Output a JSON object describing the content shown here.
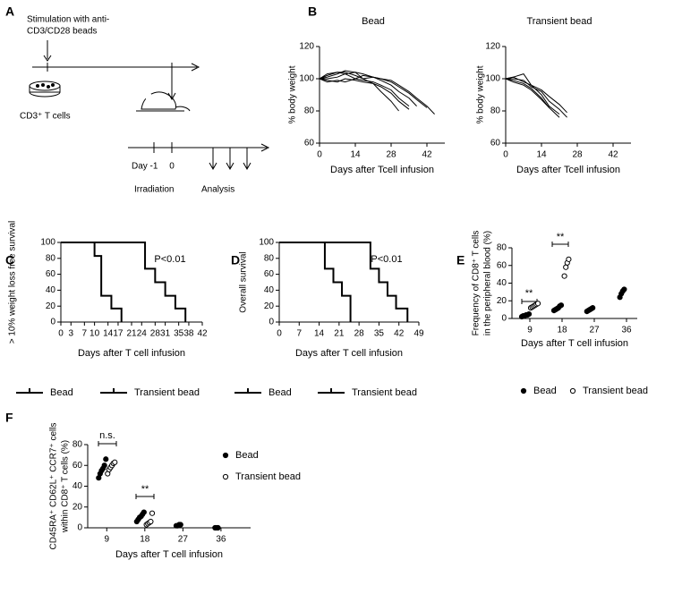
{
  "panels": [
    "A",
    "B",
    "C",
    "D",
    "E",
    "F"
  ],
  "diagram": {
    "stimulation": [
      "Stimulation with anti-",
      "CD3/CD28 beads"
    ],
    "cells": "CD3⁺ T cells",
    "day": "Day",
    "day_ticks": [
      "-1",
      "0"
    ],
    "irradiation": "Irradiation",
    "analysis": "Analysis"
  },
  "chart_data": [
    {
      "type": "line",
      "title": "Bead",
      "xlabel": "Days after Tcell infusion",
      "ylabel": "% body weight",
      "x": [
        0,
        3,
        7,
        10,
        14,
        17,
        21,
        24,
        28,
        31,
        35,
        38,
        42,
        45
      ],
      "xlim": [
        0,
        49
      ],
      "xticks": [
        0,
        14,
        28,
        42
      ],
      "ylim": [
        60,
        120
      ],
      "yticks": [
        60,
        80,
        100,
        120
      ],
      "color": "#000000",
      "series": [
        {
          "values": [
            100,
            101,
            103,
            105,
            104,
            100,
            97,
            92,
            86,
            80,
            null,
            null,
            null,
            null
          ]
        },
        {
          "values": [
            100,
            99,
            98,
            100,
            99,
            98,
            97,
            95,
            91,
            86,
            81,
            null,
            null,
            null
          ]
        },
        {
          "values": [
            100,
            102,
            104,
            103,
            100,
            99,
            98,
            96,
            93,
            88,
            83,
            null,
            null,
            null
          ]
        },
        {
          "values": [
            100,
            98,
            99,
            98,
            100,
            102,
            101,
            99,
            96,
            92,
            88,
            83,
            null,
            null
          ]
        },
        {
          "values": [
            100,
            103,
            104,
            104,
            102,
            100,
            101,
            100,
            98,
            95,
            91,
            87,
            82,
            null
          ]
        },
        {
          "values": [
            100,
            100,
            101,
            103,
            104,
            103,
            101,
            100,
            99,
            96,
            92,
            88,
            83,
            78
          ]
        }
      ]
    },
    {
      "type": "line",
      "title": "Transient bead",
      "xlabel": "Days after Tcell infusion",
      "ylabel": "% body weight",
      "x": [
        0,
        3,
        7,
        10,
        14,
        17,
        21,
        24
      ],
      "xlim": [
        0,
        49
      ],
      "xticks": [
        0,
        14,
        28,
        42
      ],
      "ylim": [
        60,
        120
      ],
      "yticks": [
        60,
        80,
        100,
        120
      ],
      "color": "#000000",
      "series": [
        {
          "values": [
            100,
            101,
            103,
            96,
            90,
            83,
            78,
            null
          ]
        },
        {
          "values": [
            100,
            99,
            97,
            94,
            88,
            82,
            76,
            null
          ]
        },
        {
          "values": [
            100,
            100,
            99,
            95,
            92,
            86,
            81,
            76
          ]
        },
        {
          "values": [
            100,
            98,
            96,
            93,
            87,
            82,
            null,
            null
          ]
        },
        {
          "values": [
            100,
            101,
            98,
            96,
            93,
            89,
            84,
            79
          ]
        }
      ]
    },
    {
      "type": "step",
      "xlabel": "Days after T cell infusion",
      "ylabel": "> 10% weight loss free survival",
      "xlim": [
        0,
        42
      ],
      "xticks": [
        0,
        3,
        7,
        10,
        14,
        17,
        21,
        24,
        28,
        31,
        35,
        38,
        42
      ],
      "ylim": [
        0,
        100
      ],
      "yticks": [
        0,
        20,
        40,
        60,
        80,
        100
      ],
      "legend": "bottom",
      "annotations": [
        "P<0.01"
      ],
      "series": [
        {
          "name": "Bead",
          "color": "#e8262a",
          "x": [
            0,
            25,
            28,
            31,
            34,
            37
          ],
          "values": [
            100,
            67,
            50,
            33,
            17,
            0
          ]
        },
        {
          "name": "Transient bead",
          "color": "#000000",
          "x": [
            0,
            10,
            12,
            15,
            18
          ],
          "values": [
            100,
            83,
            33,
            17,
            0
          ]
        }
      ]
    },
    {
      "type": "step",
      "xlabel": "Days after T cell infusion",
      "ylabel": "Overall survival",
      "xlim": [
        0,
        49
      ],
      "xticks": [
        0,
        7,
        14,
        21,
        28,
        35,
        42,
        49
      ],
      "ylim": [
        0,
        100
      ],
      "yticks": [
        0,
        20,
        40,
        60,
        80,
        100
      ],
      "legend": "bottom",
      "annotations": [
        "P<0.01"
      ],
      "series": [
        {
          "name": "Bead",
          "color": "#e8262a",
          "x": [
            0,
            32,
            35,
            38,
            41,
            45
          ],
          "values": [
            100,
            67,
            50,
            33,
            17,
            0
          ]
        },
        {
          "name": "Transient bead",
          "color": "#000000",
          "x": [
            0,
            16,
            19,
            22,
            25
          ],
          "values": [
            100,
            67,
            50,
            33,
            0
          ]
        }
      ]
    },
    {
      "type": "scatter",
      "xlabel": "Days after T cell infusion",
      "ylabel": [
        "Frequency of CD8⁺ T cells",
        "in the peripheral blood (%)"
      ],
      "xlim": [
        4,
        39
      ],
      "xticks": [
        9,
        18,
        27,
        36
      ],
      "ylim": [
        0,
        80
      ],
      "yticks": [
        0,
        20,
        40,
        60,
        80
      ],
      "legend": "bottom",
      "annotations": [
        "**",
        "**"
      ],
      "series": [
        {
          "name": "Bead",
          "color": "#000000",
          "filled": true,
          "x": [
            9,
            9,
            9,
            9,
            9,
            9,
            18,
            18,
            18,
            18,
            18,
            18,
            27,
            27,
            27,
            27,
            27,
            36,
            36,
            36,
            36
          ],
          "values": [
            2,
            3,
            3,
            4,
            4,
            5,
            9,
            10,
            11,
            12,
            14,
            15,
            8,
            9,
            10,
            11,
            12,
            24,
            28,
            31,
            33
          ]
        },
        {
          "name": "Transient bead",
          "color": "#000000",
          "filled": false,
          "x": [
            9,
            9,
            9,
            9,
            9,
            9,
            18,
            18,
            18,
            18
          ],
          "values": [
            12,
            13,
            14,
            15,
            16,
            17,
            48,
            58,
            63,
            67
          ]
        }
      ]
    },
    {
      "type": "scatter",
      "xlabel": "Days after T cell infusion",
      "ylabel": [
        "CD45RA⁺ CD62L⁺ CCR7⁺ cells",
        "within CD8⁺ T cells (%)"
      ],
      "xlim": [
        4.5,
        43
      ],
      "xticks": [
        9,
        18,
        27,
        36
      ],
      "ylim": [
        0,
        80
      ],
      "yticks": [
        0,
        20,
        40,
        60,
        80
      ],
      "legend": "right",
      "annotations": [
        "n.s.",
        "**"
      ],
      "series": [
        {
          "name": "Bead",
          "color": "#000000",
          "filled": true,
          "x": [
            9,
            9,
            9,
            9,
            9,
            9,
            18,
            18,
            18,
            18,
            18,
            18,
            27,
            27,
            27,
            27,
            36,
            36,
            36
          ],
          "values": [
            48,
            52,
            55,
            57,
            60,
            66,
            6,
            8,
            10,
            11,
            13,
            15,
            2,
            2,
            3,
            3,
            0,
            0,
            0
          ]
        },
        {
          "name": "Transient bead",
          "color": "#000000",
          "filled": false,
          "x": [
            9,
            9,
            9,
            9,
            9,
            9,
            18,
            18,
            18,
            18,
            18
          ],
          "values": [
            52,
            56,
            58,
            60,
            62,
            63,
            3,
            4,
            5,
            6,
            14
          ]
        }
      ]
    }
  ]
}
